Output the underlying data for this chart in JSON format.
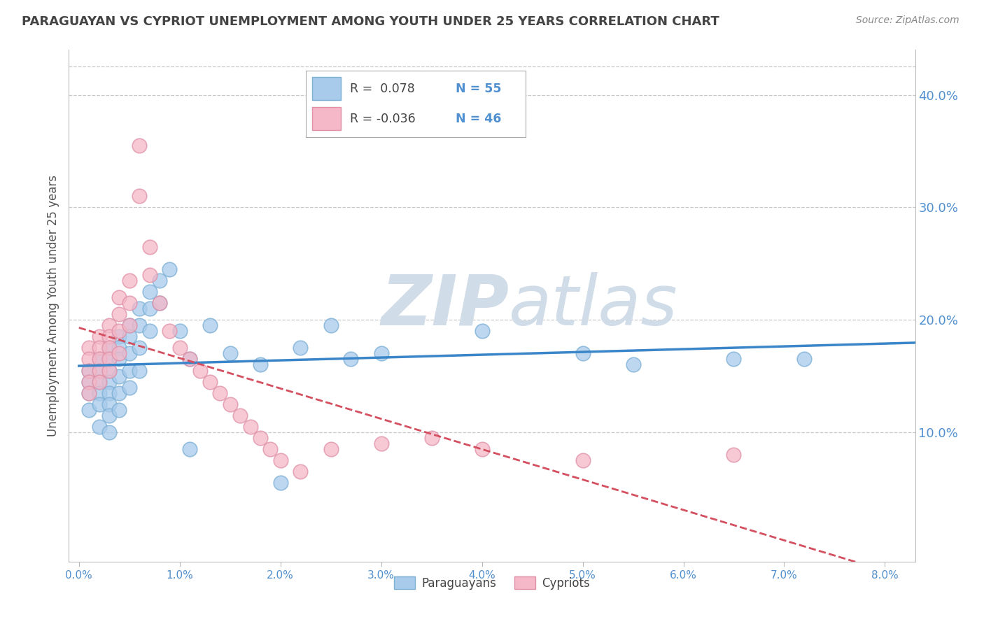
{
  "title": "PARAGUAYAN VS CYPRIOT UNEMPLOYMENT AMONG YOUTH UNDER 25 YEARS CORRELATION CHART",
  "source": "Source: ZipAtlas.com",
  "ylabel": "Unemployment Among Youth under 25 years",
  "xlabel_ticks": [
    0.0,
    0.01,
    0.02,
    0.03,
    0.04,
    0.05,
    0.06,
    0.07,
    0.08
  ],
  "xlabel_labels": [
    "0.0%",
    "1.0%",
    "2.0%",
    "3.0%",
    "4.0%",
    "5.0%",
    "6.0%",
    "7.0%",
    "8.0%"
  ],
  "ylabel_right_ticks": [
    0.1,
    0.2,
    0.3,
    0.4
  ],
  "ylabel_right_labels": [
    "10.0%",
    "20.0%",
    "30.0%",
    "40.0%"
  ],
  "xlim": [
    -0.001,
    0.083
  ],
  "ylim": [
    -0.015,
    0.44
  ],
  "blue_color": "#a8caeb",
  "pink_color": "#f4b8c8",
  "blue_edge": "#7bafd4",
  "pink_edge": "#e090a8",
  "trend_blue": "#3a86c8",
  "trend_pink": "#d45060",
  "watermark_color": "#d0dce8",
  "background_color": "#ffffff",
  "grid_color": "#c8c8c8",
  "title_color": "#444444",
  "axis_label_color": "#555555",
  "right_axis_color": "#5090d0",
  "paraguayans_x": [
    0.001,
    0.001,
    0.001,
    0.001,
    0.002,
    0.002,
    0.002,
    0.002,
    0.002,
    0.002,
    0.003,
    0.003,
    0.003,
    0.003,
    0.003,
    0.003,
    0.003,
    0.003,
    0.004,
    0.004,
    0.004,
    0.004,
    0.004,
    0.004,
    0.005,
    0.005,
    0.005,
    0.005,
    0.005,
    0.006,
    0.006,
    0.006,
    0.006,
    0.007,
    0.007,
    0.007,
    0.008,
    0.008,
    0.009,
    0.01,
    0.011,
    0.011,
    0.013,
    0.015,
    0.018,
    0.02,
    0.022,
    0.025,
    0.027,
    0.03,
    0.04,
    0.05,
    0.055,
    0.065,
    0.072
  ],
  "paraguayans_y": [
    0.155,
    0.145,
    0.135,
    0.12,
    0.165,
    0.155,
    0.145,
    0.135,
    0.125,
    0.105,
    0.175,
    0.165,
    0.155,
    0.145,
    0.135,
    0.125,
    0.115,
    0.1,
    0.185,
    0.175,
    0.165,
    0.15,
    0.135,
    0.12,
    0.195,
    0.185,
    0.17,
    0.155,
    0.14,
    0.21,
    0.195,
    0.175,
    0.155,
    0.225,
    0.21,
    0.19,
    0.235,
    0.215,
    0.245,
    0.19,
    0.165,
    0.085,
    0.195,
    0.17,
    0.16,
    0.055,
    0.175,
    0.195,
    0.165,
    0.17,
    0.19,
    0.17,
    0.16,
    0.165,
    0.165
  ],
  "cypriots_x": [
    0.001,
    0.001,
    0.001,
    0.001,
    0.001,
    0.002,
    0.002,
    0.002,
    0.002,
    0.002,
    0.003,
    0.003,
    0.003,
    0.003,
    0.003,
    0.004,
    0.004,
    0.004,
    0.004,
    0.005,
    0.005,
    0.005,
    0.006,
    0.006,
    0.007,
    0.007,
    0.008,
    0.009,
    0.01,
    0.011,
    0.012,
    0.013,
    0.014,
    0.015,
    0.016,
    0.017,
    0.018,
    0.019,
    0.02,
    0.022,
    0.025,
    0.03,
    0.035,
    0.04,
    0.05,
    0.065
  ],
  "cypriots_y": [
    0.175,
    0.165,
    0.155,
    0.145,
    0.135,
    0.185,
    0.175,
    0.165,
    0.155,
    0.145,
    0.195,
    0.185,
    0.175,
    0.165,
    0.155,
    0.22,
    0.205,
    0.19,
    0.17,
    0.235,
    0.215,
    0.195,
    0.355,
    0.31,
    0.265,
    0.24,
    0.215,
    0.19,
    0.175,
    0.165,
    0.155,
    0.145,
    0.135,
    0.125,
    0.115,
    0.105,
    0.095,
    0.085,
    0.075,
    0.065,
    0.085,
    0.09,
    0.095,
    0.085,
    0.075,
    0.08
  ]
}
